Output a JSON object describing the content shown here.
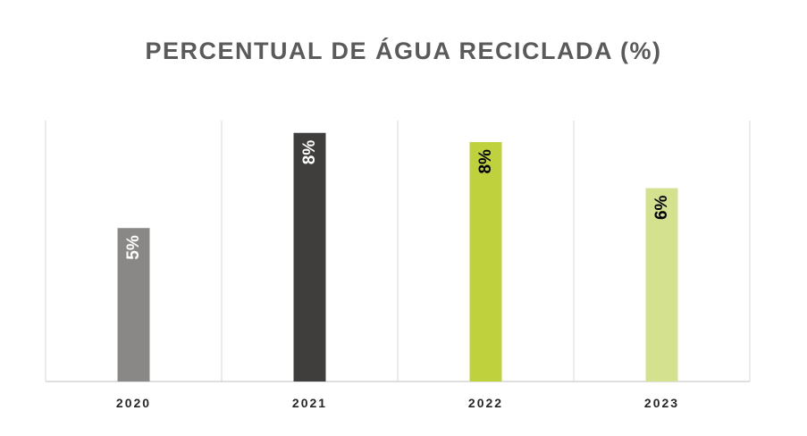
{
  "chart_data": {
    "type": "bar",
    "title": "PERCENTUAL DE ÁGUA RECICLADA (%)",
    "xlabel": "",
    "ylabel": "",
    "categories": [
      "2020",
      "2021",
      "2022",
      "2023"
    ],
    "values": [
      5.0,
      8.1,
      7.8,
      6.3
    ],
    "data_labels": [
      "5%",
      "8%",
      "8%",
      "6%"
    ],
    "bar_colors": [
      "#8a8886",
      "#3f3e3c",
      "#bfd13d",
      "#d4e18f"
    ],
    "label_colors": [
      "#ffffff",
      "#ffffff",
      "#000000",
      "#000000"
    ],
    "ylim": [
      0,
      8.5
    ],
    "grid": "vertical",
    "legend": "none"
  }
}
